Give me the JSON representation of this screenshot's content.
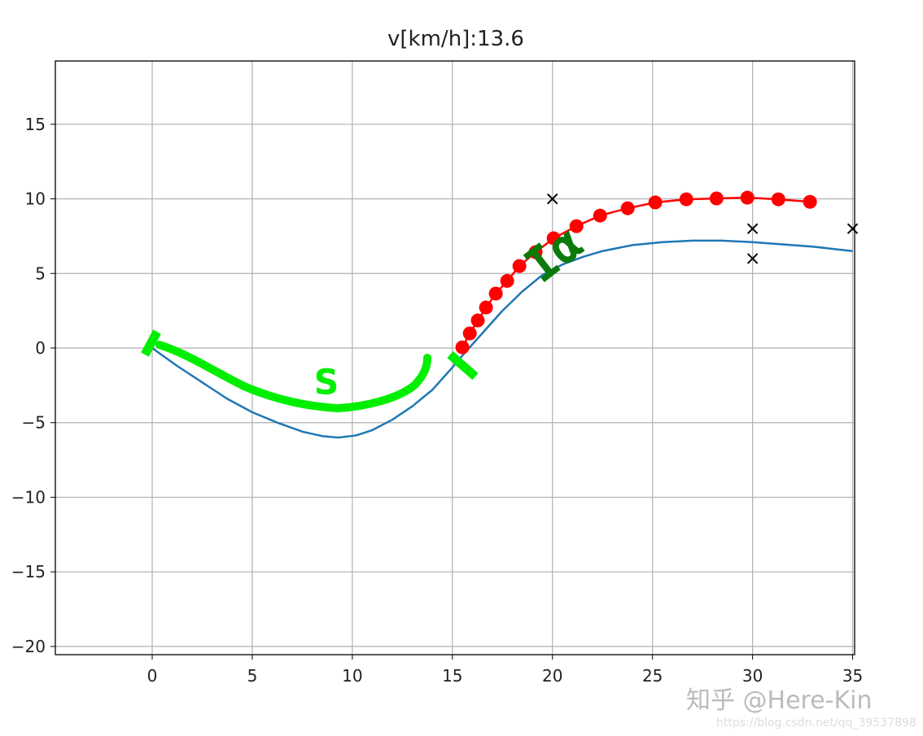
{
  "chart_data": {
    "type": "line",
    "title": "v[km/h]:13.6",
    "xlabel": "",
    "ylabel": "",
    "xlim": [
      -4.84,
      35.1
    ],
    "ylim": [
      -20.55,
      19.24
    ],
    "grid": true,
    "x_ticks": [
      "0",
      "5",
      "10",
      "15",
      "20",
      "25",
      "30",
      "35"
    ],
    "y_ticks": [
      "15",
      "10",
      "5",
      "0",
      "−5",
      "−10",
      "−15",
      "−20"
    ],
    "series": [
      {
        "kind": "line",
        "color": "#1f77b4",
        "x": [
          0,
          1.25,
          2.5,
          3.75,
          5,
          6.25,
          7.5,
          8.5,
          9.3,
          10.2,
          11,
          12,
          13,
          14,
          15,
          15.5,
          16.5,
          17.5,
          18.5,
          19.5,
          20.5,
          21.5,
          22.5,
          24,
          25.5,
          27,
          28.5,
          30,
          31.5,
          33,
          35
        ],
        "y": [
          0,
          -1.2,
          -2.3,
          -3.4,
          -4.3,
          -5.0,
          -5.6,
          -5.9,
          -6.0,
          -5.85,
          -5.5,
          -4.8,
          -3.9,
          -2.8,
          -1.3,
          -0.5,
          1.0,
          2.5,
          3.8,
          4.9,
          5.6,
          6.1,
          6.5,
          6.9,
          7.1,
          7.2,
          7.2,
          7.1,
          6.95,
          6.8,
          6.5
        ]
      },
      {
        "kind": "line-markers",
        "color": "#ff0000",
        "x": [
          15.5,
          15.87,
          16.27,
          16.68,
          17.17,
          17.74,
          18.35,
          19.16,
          20.06,
          21.2,
          22.38,
          23.76,
          25.14,
          26.69,
          28.2,
          29.74,
          31.29,
          32.87
        ],
        "y": [
          0.05,
          0.98,
          1.85,
          2.72,
          3.65,
          4.5,
          5.5,
          6.43,
          7.36,
          8.17,
          8.88,
          9.37,
          9.76,
          9.97,
          10.03,
          10.08,
          9.97,
          9.8
        ]
      },
      {
        "kind": "scatter-x",
        "color": "#000000",
        "x": [
          20,
          30,
          30,
          35
        ],
        "y": [
          10,
          8,
          6,
          8
        ]
      }
    ],
    "annotations": [
      {
        "text": "s",
        "color": "#00ee00"
      },
      {
        "text": "Iα",
        "color": "#0a7a0a"
      }
    ]
  },
  "watermark": {
    "line1": "知乎 @Here-Kin",
    "line2": "https://blog.csdn.net/qq_39537898"
  }
}
